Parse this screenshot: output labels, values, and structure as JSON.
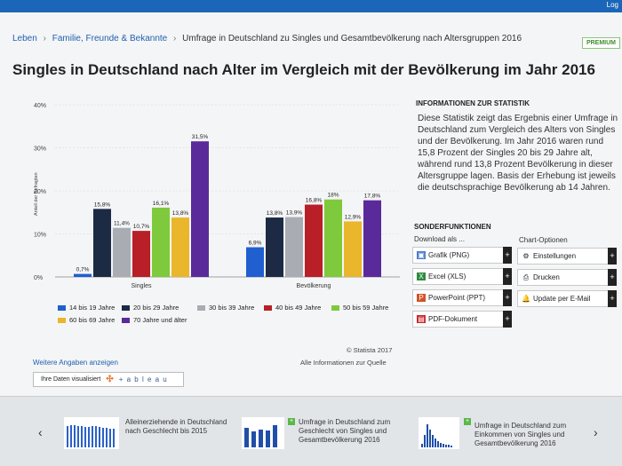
{
  "topbar": {
    "mini_text": "Log"
  },
  "breadcrumb": {
    "items": [
      "Leben",
      "Familie, Freunde & Bekannte"
    ],
    "current": "Umfrage in Deutschland zu Singles und Gesamtbevölkerung nach Altersgruppen 2016",
    "separator": "›"
  },
  "premium_badge": "PREMIUM",
  "page_title": "Singles in Deutschland nach Alter im Vergleich mit der Bevölkerung im Jahr 2016",
  "chart_data": {
    "type": "bar",
    "categories": [
      "Singles",
      "Bevölkerung"
    ],
    "ylabel": "Anteil der Befragten",
    "ylim": [
      0,
      40
    ],
    "yticks": [
      "0%",
      "10%",
      "20%",
      "30%",
      "40%"
    ],
    "grid": true,
    "legend_position": "bottom",
    "series": [
      {
        "name": "14 bis 19 Jahre",
        "color": "#1f5fd0",
        "values": [
          0.7,
          6.9
        ],
        "labels": [
          "0,7%",
          "6,9%"
        ]
      },
      {
        "name": "20 bis 29 Jahre",
        "color": "#1c2a44",
        "values": [
          15.8,
          13.8
        ],
        "labels": [
          "15,8%",
          "13,8%"
        ]
      },
      {
        "name": "30 bis 39 Jahre",
        "color": "#a9adb3",
        "values": [
          11.4,
          13.9
        ],
        "labels": [
          "11,4%",
          "13,9%"
        ]
      },
      {
        "name": "40 bis 49 Jahre",
        "color": "#b81f27",
        "values": [
          10.7,
          16.8
        ],
        "labels": [
          "10,7%",
          "16,8%"
        ]
      },
      {
        "name": "50 bis 59 Jahre",
        "color": "#7fc93c",
        "values": [
          16.1,
          18
        ],
        "labels": [
          "16,1%",
          "18%"
        ]
      },
      {
        "name": "60 bis 69 Jahre",
        "color": "#e9b62c",
        "values": [
          13.8,
          12.9
        ],
        "labels": [
          "13,8%",
          "12,9%"
        ]
      },
      {
        "name": "70 Jahre und älter",
        "color": "#5a2a9a",
        "values": [
          31.5,
          17.8
        ],
        "labels": [
          "31,5%",
          "17,8%"
        ]
      }
    ]
  },
  "source": {
    "copyright": "© Statista 2017",
    "info_link": "Alle Informationen zur Quelle"
  },
  "more_info_link": "Weitere Angaben anzeigen",
  "visualize_button": {
    "label": "Ihre Daten visualisiert",
    "logo_text": "+ a b l e a u"
  },
  "info_box": {
    "heading": "INFORMATIONEN ZUR STATISTIK",
    "text": "Diese Statistik zeigt das Ergebnis einer Umfrage in Deutschland zum Vergleich des Alters von Singles und der Bevölkerung. Im Jahr 2016 waren rund 15,8 Prozent der Singles 20 bis 29 Jahre alt, während rund 13,8 Prozent Bevölkerung in dieser Altersgruppe lagen. Basis der Erhebung ist jeweils die deutschsprachige Bevölkerung ab 14 Jahren."
  },
  "special_functions": {
    "heading": "SONDERFUNKTIONEN",
    "download_label": "Download als ...",
    "chart_options_label": "Chart-Optionen",
    "downloads": [
      "Grafik (PNG)",
      "Excel (XLS)",
      "PowerPoint (PPT)",
      "PDF-Dokument"
    ],
    "options": [
      "Einstellungen",
      "Drucken",
      "Update per E-Mail"
    ],
    "plus": "+"
  },
  "related": {
    "prev_arrow": "‹",
    "next_arrow": "›",
    "items": [
      {
        "title": "Alleinerziehende in Deutschland nach Geschlecht bis 2015"
      },
      {
        "title": "Umfrage in Deutschland zum Geschlecht von Singles und Gesamtbevölkerung 2016"
      },
      {
        "title": "Umfrage in Deutschland zum Einkommen von Singles und Gesamtbevölkerung 2016"
      }
    ],
    "plus": "+"
  }
}
